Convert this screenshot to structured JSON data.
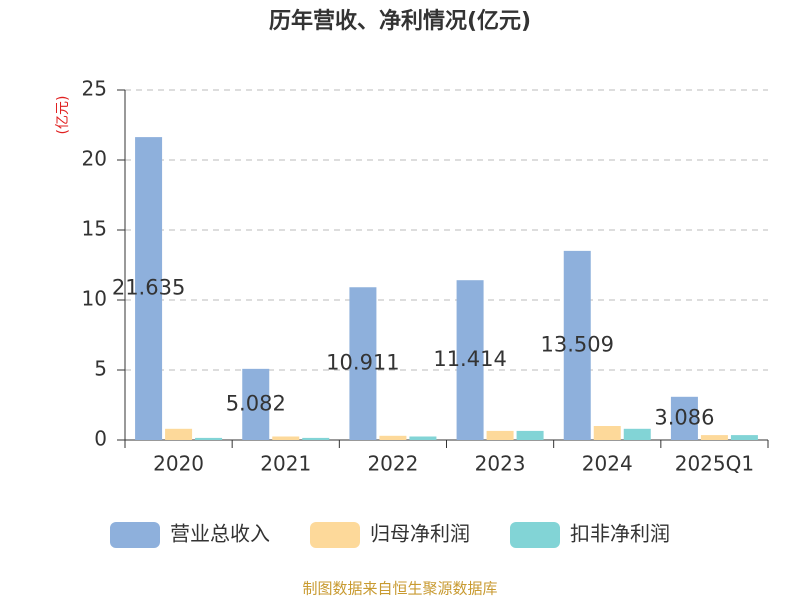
{
  "chart_data": {
    "type": "bar",
    "title": "历年营收、净利情况(亿元)",
    "y_label": "(亿元)",
    "source": "制图数据来自恒生聚源数据库",
    "categories": [
      "2020",
      "2021",
      "2022",
      "2023",
      "2024",
      "2025Q1"
    ],
    "series": [
      {
        "name": "营业总收入",
        "color": "#8eb0dc",
        "values": [
          21.635,
          5.082,
          10.911,
          11.414,
          13.509,
          3.086
        ],
        "labels": true
      },
      {
        "name": "归母净利润",
        "color": "#fdd99a",
        "values": [
          0.8,
          0.25,
          0.3,
          0.65,
          1.0,
          0.35
        ],
        "labels": false
      },
      {
        "name": "扣非净利润",
        "color": "#82d4d6",
        "values": [
          0.15,
          0.15,
          0.25,
          0.65,
          0.8,
          0.35
        ],
        "labels": false
      }
    ],
    "ylim": [
      0,
      25
    ],
    "yticks": [
      0,
      5,
      10,
      15,
      20,
      25
    ],
    "grid": true
  }
}
